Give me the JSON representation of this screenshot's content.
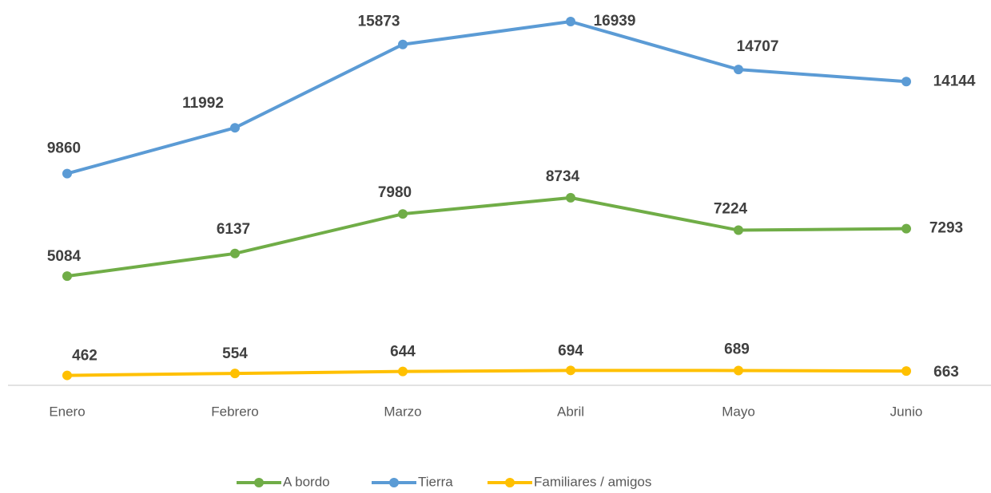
{
  "chart_data": {
    "type": "line",
    "categories": [
      "Enero",
      "Febrero",
      "Marzo",
      "Abril",
      "Mayo",
      "Junio"
    ],
    "series": [
      {
        "name": "A bordo",
        "color": "#70ad47",
        "values": [
          5084,
          6137,
          7980,
          8734,
          7224,
          7293
        ]
      },
      {
        "name": "Tierra",
        "color": "#5b9bd5",
        "values": [
          9860,
          11992,
          15873,
          16939,
          14707,
          14144
        ]
      },
      {
        "name": "Familiares  / amigos",
        "color": "#ffc000",
        "values": [
          462,
          554,
          644,
          694,
          689,
          663
        ]
      }
    ],
    "ylim": [
      0,
      17200
    ]
  }
}
